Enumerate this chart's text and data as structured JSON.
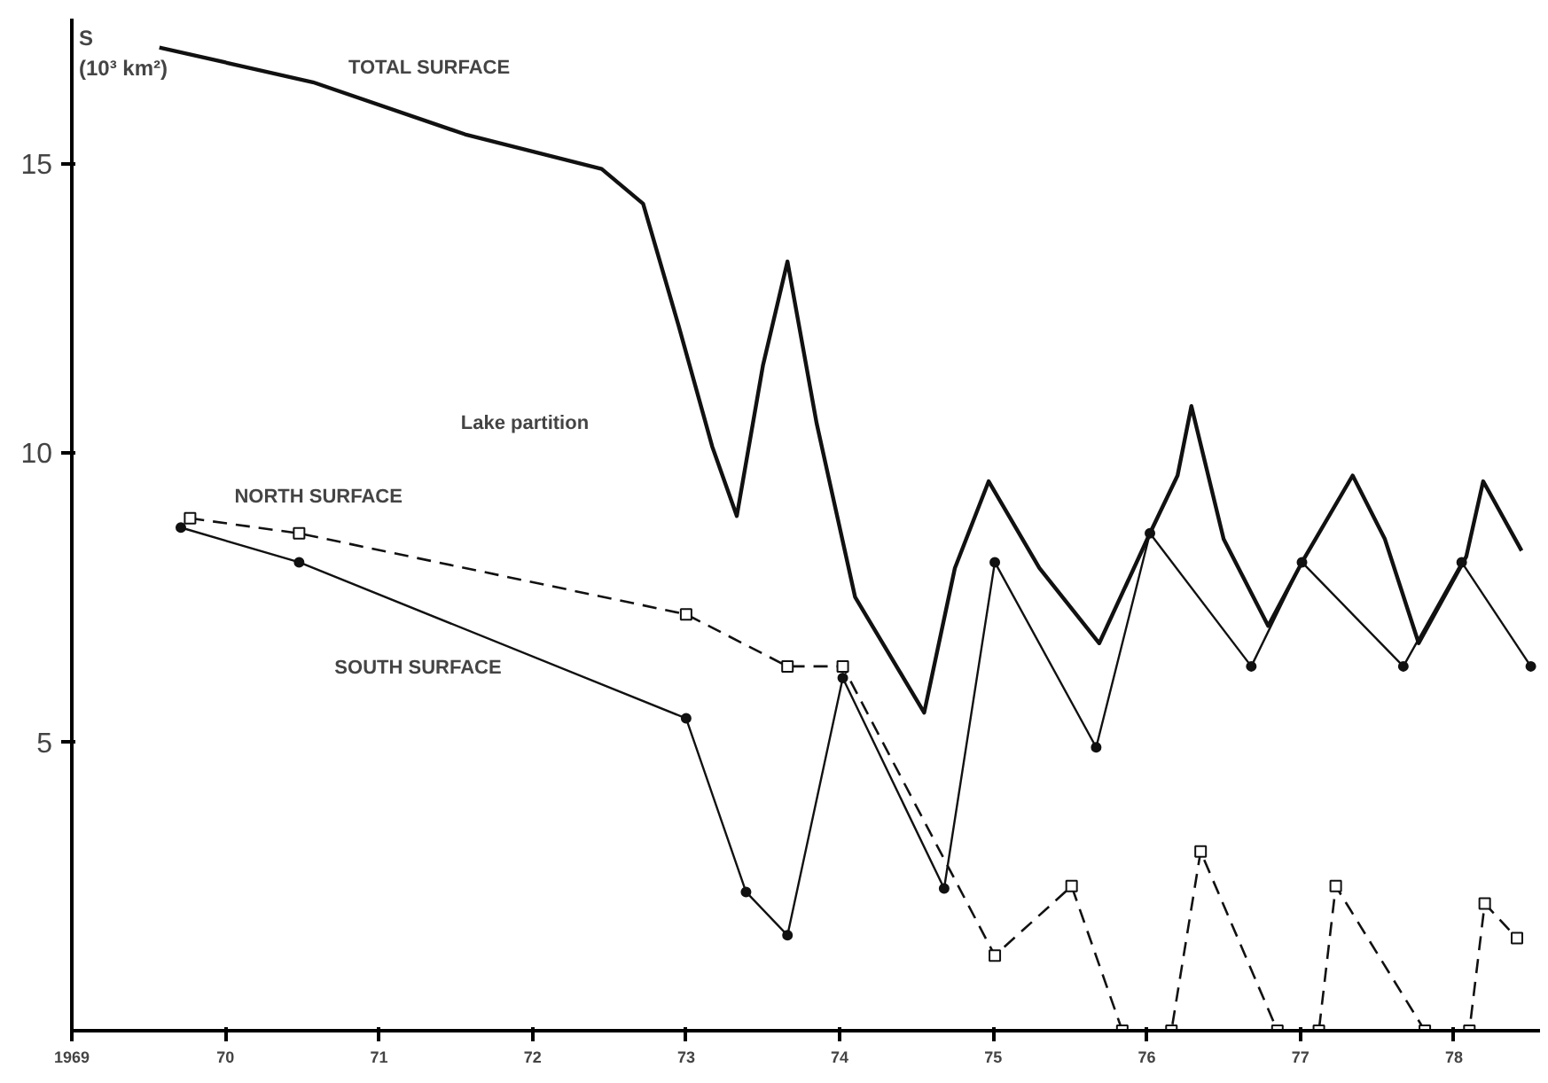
{
  "chart_data": {
    "type": "line",
    "ylabel": "S\n(10³ km²)",
    "xlim": [
      1969,
      1978.56
    ],
    "ylim": [
      0,
      17.5
    ],
    "xticks": [
      1969,
      {
        "value": 1970,
        "label": "70"
      },
      {
        "value": 1971,
        "label": "71"
      },
      {
        "value": 1972,
        "label": "72"
      },
      {
        "value": 1973,
        "label": "73"
      },
      {
        "value": 1974,
        "label": "74"
      },
      {
        "value": 1975,
        "label": "75"
      },
      {
        "value": 1976,
        "label": "76"
      },
      {
        "value": 1977,
        "label": "77"
      },
      {
        "value": 1978,
        "label": "78"
      }
    ],
    "yticks": [
      5,
      10,
      15
    ],
    "grid": false,
    "series": [
      {
        "name": "TOTAL SURFACE",
        "color": "#111111",
        "line_style": "solid",
        "marker": "none",
        "x": [
          1969.57,
          1970.57,
          1971.56,
          1972.45,
          1972.72,
          1972.95,
          1973.17,
          1973.33,
          1973.5,
          1973.66,
          1973.85,
          1974.1,
          1974.55,
          1974.75,
          1974.97,
          1975.3,
          1975.69,
          1976.02,
          1976.2,
          1976.29,
          1976.5,
          1976.79,
          1977.01,
          1977.34,
          1977.55,
          1977.77,
          1978.08,
          1978.19,
          1978.44
        ],
        "values": [
          17.0,
          16.4,
          15.5,
          14.9,
          14.3,
          12.2,
          10.1,
          8.9,
          11.5,
          13.3,
          10.5,
          7.5,
          5.5,
          8.0,
          9.5,
          8.0,
          6.7,
          8.6,
          9.6,
          10.8,
          8.5,
          7.0,
          8.1,
          9.6,
          8.5,
          6.7,
          8.2,
          9.5,
          8.3
        ]
      },
      {
        "name": "NORTH SURFACE",
        "color": "#111111",
        "line_style": "dashed",
        "marker": "square",
        "x": [
          1969.77,
          1970.48,
          1973.0,
          1973.66,
          1974.02,
          1975.01,
          1975.51,
          1975.84,
          1976.16,
          1976.35,
          1976.85,
          1977.12,
          1977.23,
          1977.81,
          1978.1,
          1978.2,
          1978.41
        ],
        "values": [
          8.86,
          8.6,
          7.2,
          6.3,
          6.3,
          1.3,
          2.5,
          0,
          0,
          3.1,
          0,
          0,
          2.5,
          0,
          0,
          2.2,
          1.6
        ]
      },
      {
        "name": "SOUTH SURFACE",
        "color": "#111111",
        "line_style": "solid",
        "marker": "circle",
        "x": [
          1969.71,
          1970.48,
          1973.0,
          1973.39,
          1973.66,
          1974.02,
          1974.68,
          1975.01,
          1975.67,
          1976.02,
          1976.68,
          1977.01,
          1977.67,
          1978.05,
          1978.5
        ],
        "values": [
          8.7,
          8.1,
          5.4,
          2.4,
          1.65,
          6.1,
          2.46,
          8.1,
          4.9,
          8.6,
          6.3,
          8.1,
          6.3,
          8.1,
          6.3
        ]
      }
    ],
    "annotations": [
      "Lake partition"
    ]
  }
}
